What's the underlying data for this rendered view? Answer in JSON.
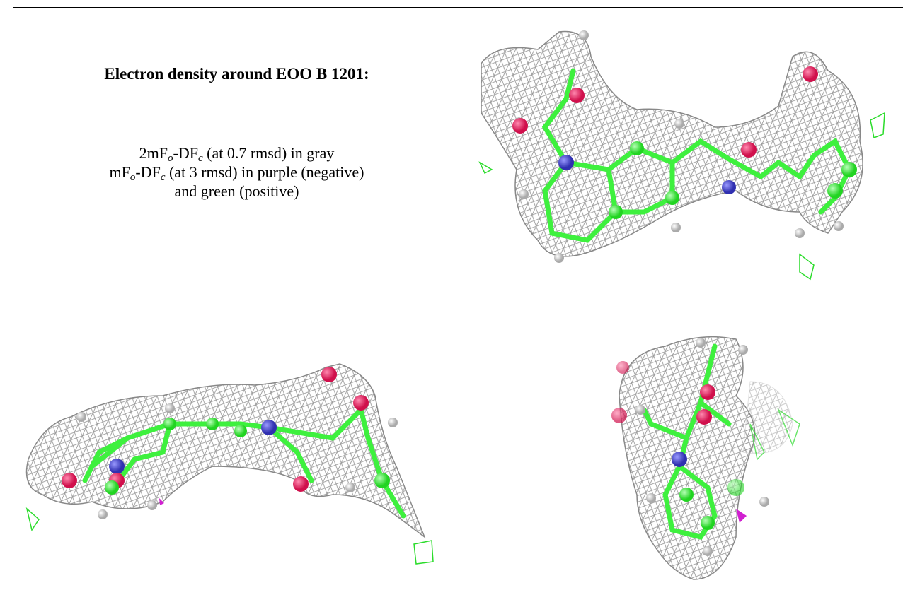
{
  "title": "Electron density around EOO B 1201:",
  "caption": [
    {
      "parts": [
        {
          "text": "2mF",
          "sub": false
        },
        {
          "text": "o",
          "sub": true
        },
        {
          "text": "-DF",
          "sub": false
        },
        {
          "text": "c",
          "sub": true
        },
        {
          "text": " (at 0.7 rmsd) in gray",
          "sub": false
        }
      ]
    },
    {
      "parts": [
        {
          "text": "mF",
          "sub": false
        },
        {
          "text": "o",
          "sub": true
        },
        {
          "text": "-DF",
          "sub": false
        },
        {
          "text": "c",
          "sub": true
        },
        {
          "text": " (at 3 rmsd) in purple (negative)",
          "sub": false
        }
      ]
    },
    {
      "parts": [
        {
          "text": "and green (positive)",
          "sub": false
        }
      ]
    }
  ]
}
